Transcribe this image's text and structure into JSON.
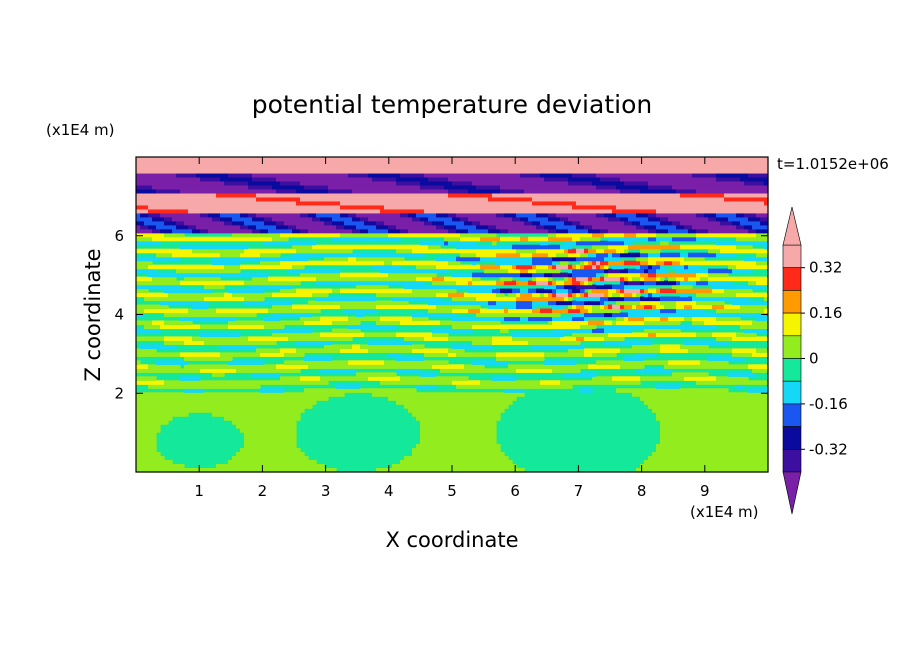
{
  "chart_data": {
    "type": "heatmap",
    "title": "potential temperature deviation",
    "xlabel": "X coordinate",
    "ylabel": "Z coordinate",
    "x_unit": "(x1E4 m)",
    "y_unit": "(x1E4 m)",
    "time_label": "t=1.0152e+06",
    "xlim": [
      0,
      10
    ],
    "ylim": [
      0,
      8
    ],
    "x_ticks": [
      1,
      2,
      3,
      4,
      5,
      6,
      7,
      8,
      9
    ],
    "y_ticks": [
      2,
      4,
      6
    ],
    "colorbar": {
      "levels": [
        -0.4,
        -0.32,
        -0.24,
        -0.16,
        -0.08,
        0,
        0.08,
        0.16,
        0.24,
        0.32,
        0.4
      ],
      "tick_labels": [
        "0.32",
        "0.16",
        "0",
        "-0.16",
        "-0.32"
      ],
      "tick_values": [
        0.32,
        0.16,
        0,
        -0.16,
        -0.32
      ],
      "colors": [
        "#7a1fa8",
        "#3d0fa0",
        "#0a0a9e",
        "#1a57f0",
        "#14d8f5",
        "#14e89a",
        "#92ec1e",
        "#f5f500",
        "#ff9a00",
        "#ff2a1a",
        "#f7a8a8"
      ],
      "extend": "both"
    },
    "description_bands": [
      {
        "z_range": [
          7.5,
          8.0
        ],
        "value": 0.4
      },
      {
        "z_range": [
          7.0,
          7.5
        ],
        "value": -0.4
      },
      {
        "z_range": [
          6.5,
          7.0
        ],
        "value": 0.4
      },
      {
        "z_range": [
          6.0,
          6.5
        ],
        "value": -0.35
      },
      {
        "z_range": [
          2.0,
          6.0
        ],
        "value": 0.0
      },
      {
        "z_range": [
          0.0,
          2.0
        ],
        "value": 0.05
      }
    ]
  }
}
